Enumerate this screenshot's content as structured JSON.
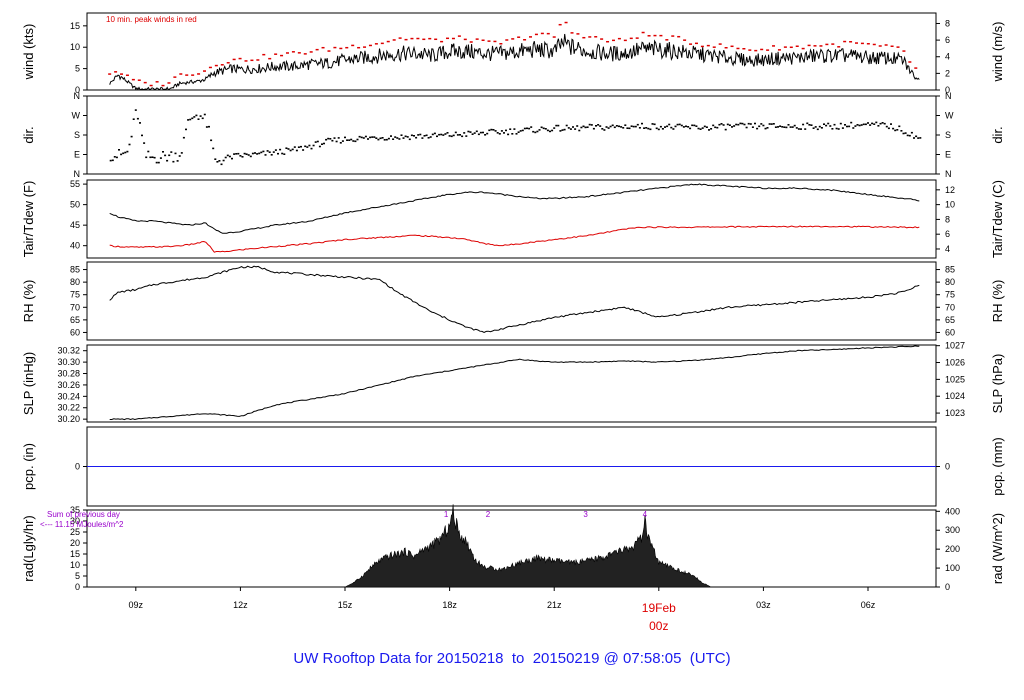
{
  "footer": {
    "prefix": "UW Rooftop Data for ",
    "date_from": "20150218",
    "to_word": "to",
    "date_to": "20150219",
    "at_word": "@",
    "time": "07:58:05",
    "tz": "(UTC)"
  },
  "colors": {
    "line": "#000000",
    "red": "#dd0000",
    "blue": "#1a1aee",
    "purple": "#9900cc",
    "fill": "#222222"
  },
  "chart_data": [
    {
      "id": "wind",
      "type": "line",
      "ylabel": "wind (kts)",
      "ylabel_right": "wind (m/s)",
      "ylim": [
        0,
        18
      ],
      "yticks": [
        0,
        5,
        10,
        15
      ],
      "ylim_right": [
        0,
        9.26
      ],
      "yticks_right": [
        0,
        2,
        4,
        6,
        8
      ],
      "annotation": "10 min. peak winds in red",
      "x_hours": [
        8.25,
        8.5,
        8.75,
        9.0,
        9.25,
        9.5,
        9.75,
        10.0,
        10.25,
        10.5,
        10.75,
        11.0,
        11.25,
        11.5,
        11.75,
        12.0,
        12.5,
        13.0,
        13.5,
        14.0,
        14.5,
        15.0,
        15.5,
        16.0,
        16.5,
        17.0,
        17.5,
        18.0,
        18.5,
        19.0,
        19.5,
        20.0,
        20.5,
        21.0,
        21.25,
        21.5,
        22.0,
        22.5,
        23.0,
        23.5,
        24.0,
        24.5,
        25.0,
        25.5,
        26.0,
        26.5,
        27.0,
        27.5,
        28.0,
        28.5,
        29.0,
        29.5,
        30.0,
        30.5,
        31.0,
        31.25,
        31.5
      ],
      "values": [
        1.5,
        3.5,
        2.0,
        0.3,
        0.2,
        0.2,
        0.2,
        0.3,
        1.5,
        1.8,
        2.0,
        2.5,
        4.0,
        4.5,
        5.0,
        4.8,
        5.0,
        5.5,
        5.5,
        6.0,
        6.3,
        7.0,
        7.5,
        8.0,
        8.5,
        8.5,
        8.0,
        9.0,
        9.0,
        8.5,
        8.5,
        9.0,
        9.5,
        9.0,
        11.0,
        10.0,
        9.0,
        8.5,
        8.5,
        9.5,
        9.5,
        9.0,
        8.5,
        8.0,
        7.5,
        7.0,
        7.0,
        7.5,
        7.5,
        8.0,
        8.0,
        8.0,
        7.5,
        7.5,
        7.0,
        4.0,
        2.0
      ],
      "peaks": [
        4.0,
        4.5,
        3.0,
        2.0,
        1.5,
        1.5,
        1.5,
        2.0,
        3.5,
        4.0,
        4.0,
        4.5,
        6.0,
        6.5,
        7.0,
        7.0,
        7.5,
        8.0,
        8.5,
        9.0,
        9.5,
        10.0,
        10.5,
        11.0,
        12.0,
        12.0,
        11.5,
        12.0,
        12.0,
        11.0,
        11.0,
        12.0,
        13.0,
        12.5,
        16.5,
        13.5,
        12.5,
        11.5,
        11.5,
        13.0,
        12.5,
        12.0,
        11.0,
        10.5,
        10.0,
        9.5,
        9.5,
        10.0,
        10.0,
        10.5,
        10.5,
        11.0,
        10.5,
        10.0,
        9.5,
        6.0,
        3.5
      ]
    },
    {
      "id": "dir",
      "type": "scatter",
      "ylabel": "dir.",
      "ylabel_right": "dir.",
      "ylim": [
        0,
        360
      ],
      "ytick_labels": [
        "N",
        "E",
        "S",
        "W",
        "N"
      ],
      "yticks": [
        0,
        90,
        180,
        270,
        360
      ],
      "x_hours": [
        8.25,
        8.5,
        8.75,
        9.0,
        9.25,
        9.5,
        9.75,
        10.0,
        10.25,
        10.5,
        10.75,
        11.0,
        11.25,
        11.5,
        11.75,
        12.0,
        12.5,
        13.0,
        13.5,
        14.0,
        14.5,
        15.0,
        15.5,
        16.0,
        16.5,
        17.0,
        17.5,
        18.0,
        18.5,
        19.0,
        19.5,
        20.0,
        20.5,
        21.0,
        21.5,
        22.0,
        22.5,
        23.0,
        23.5,
        24.0,
        24.5,
        25.0,
        25.5,
        26.0,
        26.5,
        27.0,
        27.5,
        28.0,
        28.5,
        29.0,
        29.5,
        30.0,
        30.5,
        31.0,
        31.5
      ],
      "values": [
        90,
        85,
        100,
        300,
        80,
        75,
        80,
        85,
        90,
        250,
        280,
        240,
        60,
        70,
        80,
        85,
        90,
        100,
        110,
        130,
        150,
        160,
        165,
        170,
        170,
        175,
        175,
        180,
        185,
        190,
        195,
        200,
        205,
        210,
        210,
        215,
        215,
        220,
        220,
        220,
        215,
        215,
        215,
        220,
        220,
        220,
        220,
        220,
        220,
        220,
        225,
        225,
        225,
        200,
        160
      ]
    },
    {
      "id": "temp",
      "type": "line",
      "ylabel": "Tair/Tdew (F)",
      "ylabel_right": "Tair/Tdew (C)",
      "ylim": [
        37,
        56
      ],
      "yticks": [
        40,
        45,
        50,
        55
      ],
      "ylim_right": [
        2.78,
        13.33
      ],
      "yticks_right": [
        4,
        6,
        8,
        10,
        12
      ],
      "x_hours": [
        8.25,
        8.5,
        9.0,
        9.5,
        10.0,
        10.5,
        11.0,
        11.25,
        11.5,
        12.0,
        13.0,
        14.0,
        15.0,
        16.0,
        17.0,
        18.0,
        18.5,
        19.0,
        19.5,
        20.0,
        20.5,
        21.0,
        22.0,
        23.0,
        23.5,
        24.0,
        24.5,
        25.0,
        26.0,
        27.0,
        28.0,
        29.0,
        30.0,
        31.0,
        31.5
      ],
      "series": [
        {
          "name": "Tair",
          "color": "#000000",
          "values": [
            48,
            47,
            46,
            46,
            45.5,
            45,
            45.5,
            44,
            43,
            43.5,
            45,
            46,
            48,
            49.5,
            51,
            52.5,
            53,
            53,
            52.5,
            52,
            51.5,
            51.5,
            52,
            53,
            53.5,
            54,
            54.5,
            55,
            54.5,
            54,
            54,
            53.5,
            52.5,
            51.5,
            51
          ]
        },
        {
          "name": "Tdew",
          "color": "#dd0000",
          "values": [
            40,
            39.8,
            39.6,
            39.7,
            39.8,
            40.2,
            41,
            38.5,
            38.5,
            39,
            39.8,
            40.5,
            41.5,
            42,
            42.5,
            42,
            41.5,
            40.5,
            40,
            40.5,
            41,
            41.5,
            42.5,
            44,
            44.5,
            44.5,
            44.5,
            44.5,
            44.6,
            44.6,
            44.7,
            44.7,
            44.6,
            44.5,
            44.5
          ]
        }
      ]
    },
    {
      "id": "rh",
      "type": "line",
      "ylabel": "RH (%)",
      "ylabel_right": "RH (%)",
      "ylim": [
        57,
        88
      ],
      "yticks": [
        60,
        65,
        70,
        75,
        80,
        85
      ],
      "yticks_right": [
        60,
        65,
        70,
        75,
        80,
        85
      ],
      "x_hours": [
        8.25,
        8.5,
        9.0,
        9.5,
        10.0,
        10.5,
        11.0,
        11.5,
        12.0,
        12.5,
        13.0,
        14.0,
        15.0,
        16.0,
        16.5,
        17.0,
        17.5,
        18.0,
        18.5,
        19.0,
        20.0,
        21.0,
        22.0,
        23.0,
        23.5,
        24.0,
        25.0,
        26.0,
        27.0,
        28.0,
        29.0,
        30.0,
        31.0,
        31.5
      ],
      "values": [
        73,
        76,
        77,
        79,
        80,
        81,
        82,
        84,
        86,
        86,
        84,
        83,
        82,
        81,
        76,
        72,
        68,
        65,
        62,
        60,
        63,
        66,
        68,
        70,
        68,
        66,
        68,
        70,
        71,
        72,
        73,
        74,
        76,
        79
      ]
    },
    {
      "id": "slp",
      "type": "line",
      "ylabel": "SLP (inHg)",
      "ylabel_right": "SLP (hPa)",
      "ylim": [
        30.195,
        30.33
      ],
      "yticks": [
        30.2,
        30.22,
        30.24,
        30.26,
        30.28,
        30.3,
        30.32
      ],
      "ytick_labels": [
        "30.20",
        "30.22",
        "30.24",
        "30.26",
        "30.28",
        "30.30",
        "30.32"
      ],
      "ylim_right": [
        1022.47,
        1027.04
      ],
      "yticks_right": [
        1023,
        1024,
        1025,
        1026,
        1027
      ],
      "x_hours": [
        8.25,
        9.0,
        10.0,
        11.0,
        12.0,
        13.0,
        14.0,
        15.0,
        16.0,
        17.0,
        18.0,
        19.0,
        20.0,
        20.5,
        21.0,
        22.0,
        23.0,
        24.0,
        25.0,
        26.0,
        27.0,
        28.0,
        29.0,
        30.0,
        31.0,
        31.5
      ],
      "values": [
        30.2,
        30.2,
        30.205,
        30.21,
        30.205,
        30.225,
        30.235,
        30.245,
        30.26,
        30.275,
        30.285,
        30.295,
        30.305,
        30.302,
        30.3,
        30.3,
        30.302,
        30.3,
        30.303,
        30.308,
        30.315,
        30.32,
        30.322,
        30.325,
        30.327,
        30.328
      ]
    },
    {
      "id": "pcp",
      "type": "line",
      "ylabel": "pcp. (in)",
      "ylabel_right": "pcp. (mm)",
      "ylim": [
        -1,
        1
      ],
      "yticks": [
        0
      ],
      "yticks_right": [
        0
      ],
      "x_hours": [
        7.6,
        32.0
      ],
      "values": [
        0,
        0
      ]
    },
    {
      "id": "rad",
      "type": "area",
      "ylabel": "rad(Lgly/hr)",
      "ylabel_right": "rad (W/m^2)",
      "ylim": [
        0,
        35
      ],
      "yticks": [
        0,
        5,
        10,
        15,
        20,
        25,
        30,
        35
      ],
      "ylim_right": [
        0,
        406.9
      ],
      "yticks_right": [
        0,
        100,
        200,
        300,
        400
      ],
      "note_lines": [
        "Sum of previous day",
        "<--- 11.15 MJoules/m^2"
      ],
      "markers": [
        {
          "label": "1",
          "x": 17.9
        },
        {
          "label": "2",
          "x": 19.1
        },
        {
          "label": "3",
          "x": 21.9
        },
        {
          "label": "4",
          "x": 23.6
        }
      ],
      "x_hours": [
        15.0,
        15.25,
        15.5,
        15.75,
        16.0,
        16.25,
        16.5,
        16.75,
        17.0,
        17.25,
        17.5,
        17.75,
        18.0,
        18.1,
        18.25,
        18.5,
        18.75,
        19.0,
        19.5,
        20.0,
        20.5,
        21.0,
        21.5,
        22.0,
        22.5,
        23.0,
        23.25,
        23.5,
        23.6,
        23.75,
        24.0,
        24.5,
        25.0,
        25.25,
        25.5
      ],
      "values": [
        0,
        2,
        5,
        9,
        12,
        14,
        15,
        16,
        14,
        17,
        19,
        22,
        28,
        34,
        25,
        20,
        12,
        9,
        8,
        11,
        13,
        12,
        11,
        12,
        14,
        17,
        18,
        22,
        29,
        20,
        11,
        8,
        5,
        2,
        0
      ]
    }
  ],
  "x_axis": {
    "tick_labels": [
      "09z",
      "12z",
      "15z",
      "18z",
      "21z",
      "00z",
      "03z",
      "06z"
    ],
    "tick_hours": [
      9,
      12,
      15,
      18,
      21,
      24,
      27,
      30
    ],
    "date_label": "19Feb",
    "date_sub": "00z"
  }
}
